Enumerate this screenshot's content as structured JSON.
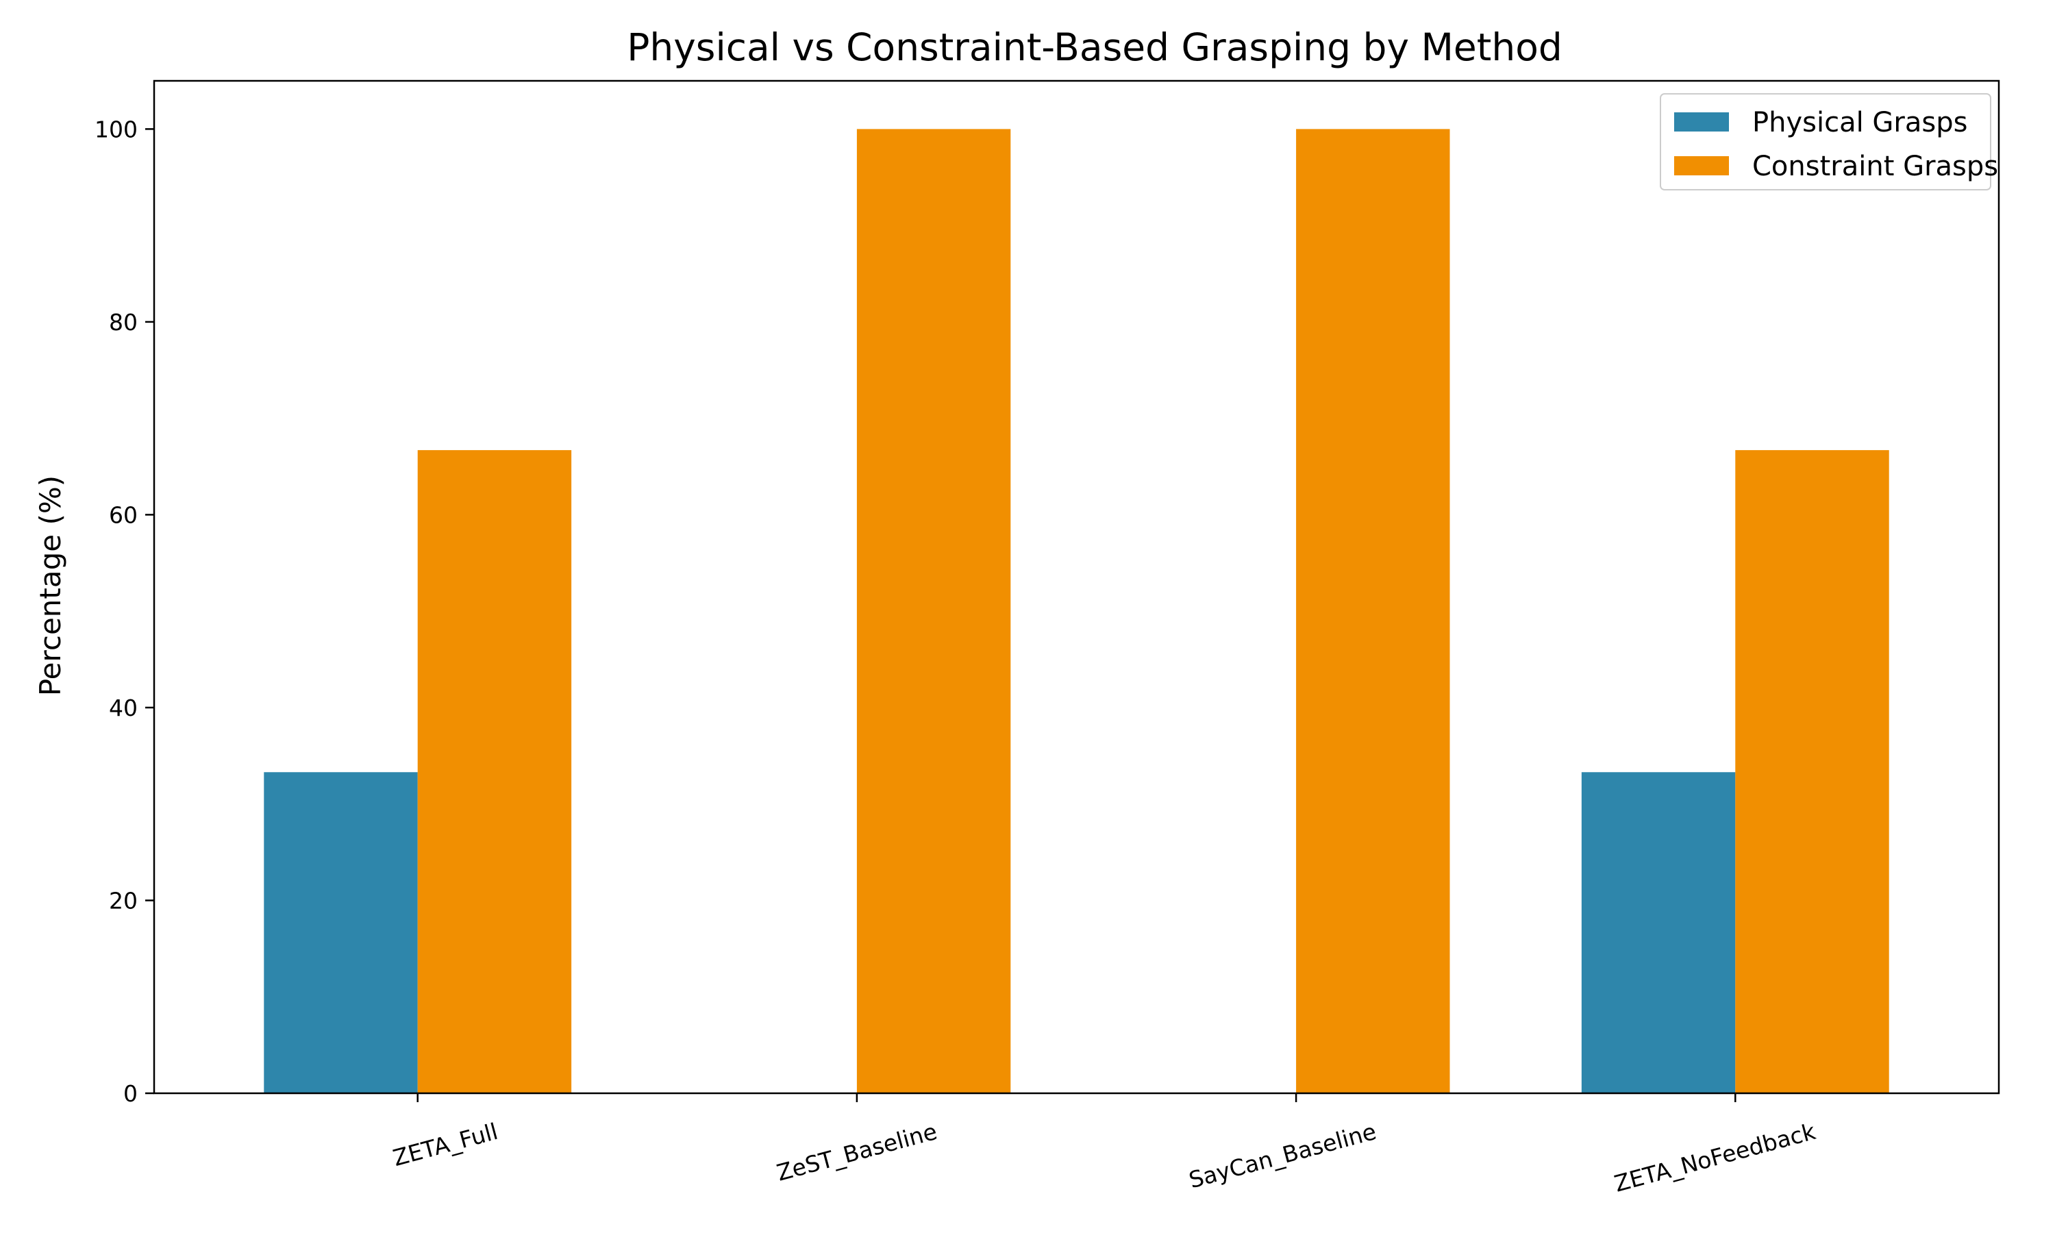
{
  "chart_data": {
    "type": "bar",
    "title": "Physical vs Constraint-Based Grasping by Method",
    "xlabel": "",
    "ylabel": "Percentage (%)",
    "categories": [
      "ZETA_Full",
      "ZeST_Baseline",
      "SayCan_Baseline",
      "ZETA_NoFeedback"
    ],
    "series": [
      {
        "name": "Physical Grasps",
        "values": [
          33.3,
          0,
          0,
          33.3
        ],
        "color": "#2e86ab"
      },
      {
        "name": "Constraint Grasps",
        "values": [
          66.7,
          100,
          100,
          66.7
        ],
        "color": "#f18f01"
      }
    ],
    "ylim": [
      0,
      105
    ],
    "yticks": [
      0,
      20,
      40,
      60,
      80,
      100
    ],
    "grid": false,
    "legend_position": "top-right"
  }
}
